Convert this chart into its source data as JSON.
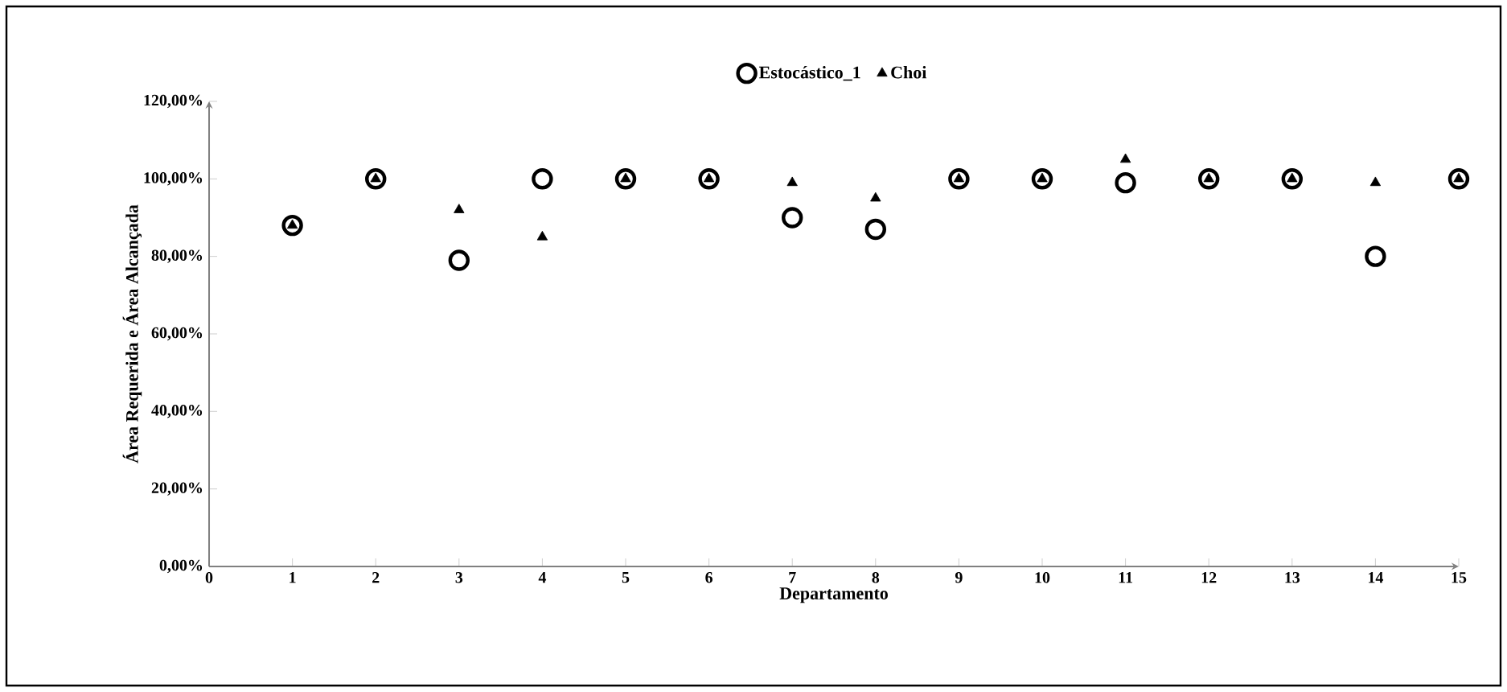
{
  "chart_data": {
    "type": "scatter",
    "xlabel": "Departamento",
    "ylabel": "Área Requerida e Área Alcançada",
    "x": [
      1,
      2,
      3,
      4,
      5,
      6,
      7,
      8,
      9,
      10,
      11,
      12,
      13,
      14,
      15
    ],
    "series": [
      {
        "name": "Estocástico_1",
        "color": "#000000",
        "marker": "circle",
        "values": [
          88,
          100,
          79,
          100,
          100,
          100,
          90,
          87,
          100,
          100,
          99,
          100,
          100,
          80,
          100
        ]
      },
      {
        "name": "Choi",
        "color": "#000000",
        "marker": "triangle",
        "values": [
          88,
          100,
          92,
          85,
          100,
          100,
          99,
          95,
          100,
          100,
          105,
          100,
          100,
          99,
          100
        ]
      }
    ],
    "xlim": [
      0,
      15
    ],
    "xticks": [
      0,
      1,
      2,
      3,
      4,
      5,
      6,
      7,
      8,
      9,
      10,
      11,
      12,
      13,
      14,
      15
    ],
    "ylim": [
      0,
      120
    ],
    "yticks": [
      {
        "value": 0,
        "label": "0,00%"
      },
      {
        "value": 20,
        "label": "20,00%"
      },
      {
        "value": 40,
        "label": "40,00%"
      },
      {
        "value": 60,
        "label": "60,00%"
      },
      {
        "value": 80,
        "label": "80,00%"
      },
      {
        "value": 100,
        "label": "100,00%"
      },
      {
        "value": 120,
        "label": "120,00%"
      }
    ],
    "legend": "top",
    "grid": false
  }
}
